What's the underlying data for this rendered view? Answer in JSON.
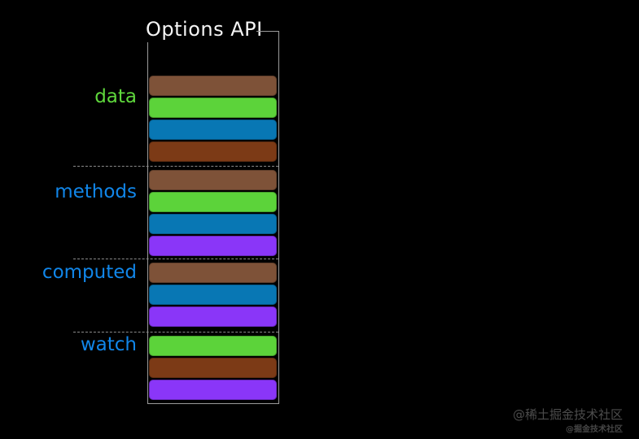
{
  "title": "Options API",
  "sections": [
    {
      "label": "data",
      "label_color": "green",
      "bars": [
        "brown",
        "green",
        "blue",
        "rust"
      ]
    },
    {
      "label": "methods",
      "label_color": "blue",
      "bars": [
        "brown",
        "green",
        "blue",
        "purple"
      ]
    },
    {
      "label": "computed",
      "label_color": "blue",
      "bars": [
        "brown",
        "blue",
        "purple"
      ]
    },
    {
      "label": "watch",
      "label_color": "blue",
      "bars": [
        "green",
        "rust",
        "purple"
      ]
    }
  ],
  "colors": {
    "background": "#000000",
    "title": "#f5f5f5",
    "bracket": "#9b9b9b",
    "divider": "#8a8a8a",
    "labels": {
      "green": "#5fd83c",
      "blue": "#1186e9"
    },
    "bars": {
      "brown": "#7e5238",
      "green": "#5cd33a",
      "blue": "#0877b4",
      "rust": "#7c3a16",
      "purple": "#8a36f8"
    }
  },
  "watermark": {
    "large": "@稀土掘金技术社区",
    "small": "@掘金技术社区"
  }
}
